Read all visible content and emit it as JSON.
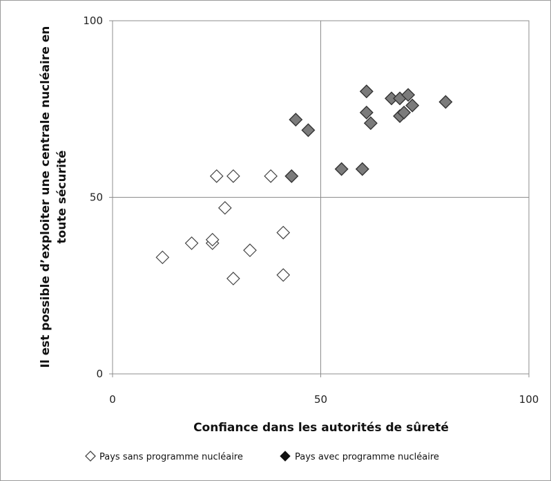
{
  "chart_data": {
    "type": "scatter",
    "xlabel": "Confiance dans les autorités de sûreté",
    "ylabel_lines": [
      "Il est possible d’exploiter une centrale nucléaire en",
      "toute sécurité"
    ],
    "xlim": [
      0,
      100
    ],
    "ylim": [
      0,
      100
    ],
    "x_ticks": [
      0,
      50,
      100
    ],
    "y_ticks": [
      0,
      50,
      100
    ],
    "x_tick_labels": [
      "0",
      "50",
      "100"
    ],
    "y_tick_labels": [
      "0",
      "50",
      "100"
    ],
    "reference_lines": {
      "x": 50,
      "y": 50
    },
    "legend_position": "bottom",
    "series": [
      {
        "name": "Pays sans programme nucléaire",
        "marker": "diamond-open",
        "color": "#444444",
        "fill": "#ffffff",
        "points": [
          [
            12,
            33
          ],
          [
            19,
            37
          ],
          [
            24,
            37
          ],
          [
            24,
            38
          ],
          [
            25,
            56
          ],
          [
            27,
            47
          ],
          [
            29,
            27
          ],
          [
            29,
            56
          ],
          [
            33,
            35
          ],
          [
            38,
            56
          ],
          [
            41,
            40
          ],
          [
            41,
            28
          ]
        ]
      },
      {
        "name": "Pays avec programme nucléaire",
        "marker": "diamond-filled",
        "color": "#333333",
        "fill": "#7b7b7b",
        "points": [
          [
            43,
            56
          ],
          [
            44,
            72
          ],
          [
            47,
            69
          ],
          [
            55,
            58
          ],
          [
            60,
            58
          ],
          [
            61,
            80
          ],
          [
            61,
            74
          ],
          [
            62,
            71
          ],
          [
            67,
            78
          ],
          [
            69,
            78
          ],
          [
            69,
            73
          ],
          [
            70,
            74
          ],
          [
            71,
            79
          ],
          [
            72,
            76
          ],
          [
            80,
            77
          ]
        ]
      }
    ]
  }
}
